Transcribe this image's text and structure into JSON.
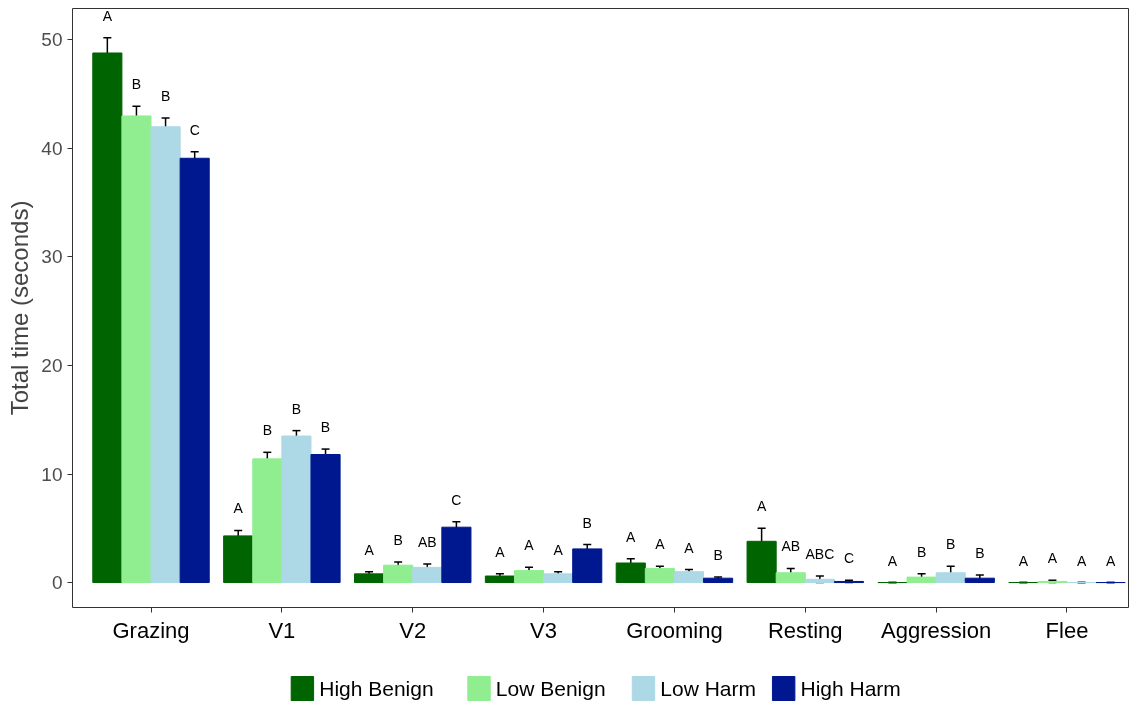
{
  "chart_data": {
    "type": "bar",
    "ylabel": "Total time (seconds)",
    "categories": [
      "Grazing",
      "V1",
      "V2",
      "V3",
      "Grooming",
      "Resting",
      "Aggression",
      "Flee"
    ],
    "series": [
      {
        "name": "High Benign",
        "color": "#006400",
        "values": [
          48.8,
          4.3,
          0.8,
          0.6,
          1.8,
          3.8,
          0,
          0
        ],
        "errors": [
          1.4,
          0.5,
          0.2,
          0.2,
          0.4,
          1.2,
          0,
          0
        ],
        "value_labels": [
          "A",
          "A",
          "A",
          "A",
          "A",
          "A",
          "A",
          "A"
        ]
      },
      {
        "name": "Low Benign",
        "color": "#90ee90",
        "values": [
          43.0,
          11.4,
          1.6,
          1.1,
          1.3,
          0.9,
          0.5,
          0.1
        ],
        "errors": [
          0.9,
          0.6,
          0.3,
          0.3,
          0.2,
          0.4,
          0.3,
          0.1
        ],
        "value_labels": [
          "B",
          "B",
          "B",
          "A",
          "A",
          "AB",
          "B",
          "A"
        ]
      },
      {
        "name": "Low Harm",
        "color": "#add8e6",
        "values": [
          42.0,
          13.5,
          1.4,
          0.8,
          1.0,
          0.3,
          0.9,
          0
        ],
        "errors": [
          0.8,
          0.5,
          0.3,
          0.2,
          0.2,
          0.3,
          0.6,
          0
        ],
        "value_labels": [
          "B",
          "B",
          "AB",
          "A",
          "A",
          "ABC",
          "B",
          "A"
        ]
      },
      {
        "name": "High Harm",
        "color": "#00188f",
        "values": [
          39.1,
          11.8,
          5.1,
          3.1,
          0.4,
          0.1,
          0.4,
          0
        ],
        "errors": [
          0.6,
          0.5,
          0.5,
          0.4,
          0.1,
          0.1,
          0.3,
          0
        ],
        "value_labels": [
          "C",
          "B",
          "C",
          "B",
          "B",
          "C",
          "B",
          "A"
        ]
      }
    ],
    "ylim": [
      -2.3,
      52.9
    ],
    "yticks": [
      0,
      10,
      20,
      30,
      40,
      50
    ],
    "grid": false,
    "legend": "bottom"
  }
}
